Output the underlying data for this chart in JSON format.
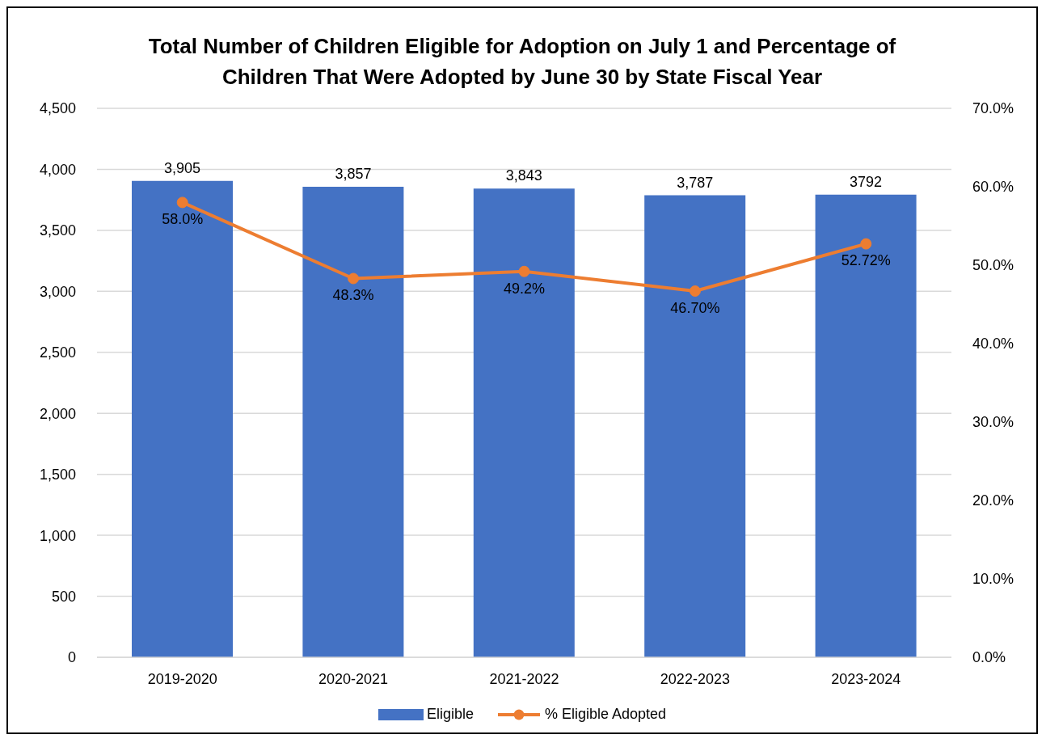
{
  "chart_data": {
    "type": "bar",
    "title": "Total Number of Children Eligible for Adoption on July 1 and Percentage of Children That Were Adopted by June 30 by State Fiscal Year",
    "categories": [
      "2019-2020",
      "2020-2021",
      "2021-2022",
      "2022-2023",
      "2023-2024"
    ],
    "series": [
      {
        "name": "Eligible",
        "color": "#4472c4",
        "values": [
          3905,
          3857,
          3843,
          3787,
          3792
        ],
        "value_labels": [
          "3,905",
          "3,857",
          "3,843",
          "3,787",
          "3792"
        ]
      },
      {
        "name": "% Eligible Adopted",
        "type": "line",
        "axis": "y2",
        "color": "#ed7d31",
        "values": [
          58.0,
          48.3,
          49.2,
          46.7,
          52.72
        ],
        "value_labels": [
          "58.0%",
          "48.3%",
          "49.2%",
          "46.70%",
          "52.72%"
        ]
      }
    ],
    "ylim": [
      0,
      4500
    ],
    "yticks": [
      0,
      500,
      {
        "value": 1000,
        "label": "1,000"
      },
      {
        "value": 1500,
        "label": "1,500"
      },
      {
        "value": 2000,
        "label": "2,000"
      },
      {
        "value": 2500,
        "label": "2,500"
      },
      {
        "value": 3000,
        "label": "3,000"
      },
      {
        "value": 3500,
        "label": "3,500"
      },
      {
        "value": 4000,
        "label": "4,000"
      },
      {
        "value": 4500,
        "label": "4,500"
      }
    ],
    "y2lim": [
      0,
      70
    ],
    "y2ticks": [
      {
        "value": 0,
        "label": "0.0%"
      },
      {
        "value": 10,
        "label": "10.0%"
      },
      {
        "value": 20,
        "label": "20.0%"
      },
      {
        "value": 30,
        "label": "30.0%"
      },
      {
        "value": 40,
        "label": "40.0%"
      },
      {
        "value": 50,
        "label": "50.0%"
      },
      {
        "value": 60,
        "label": "60.0%"
      },
      {
        "value": 70,
        "label": "70.0%"
      }
    ],
    "grid": "y",
    "legend": "bottom",
    "marker": "circle",
    "line_style": "solid"
  }
}
